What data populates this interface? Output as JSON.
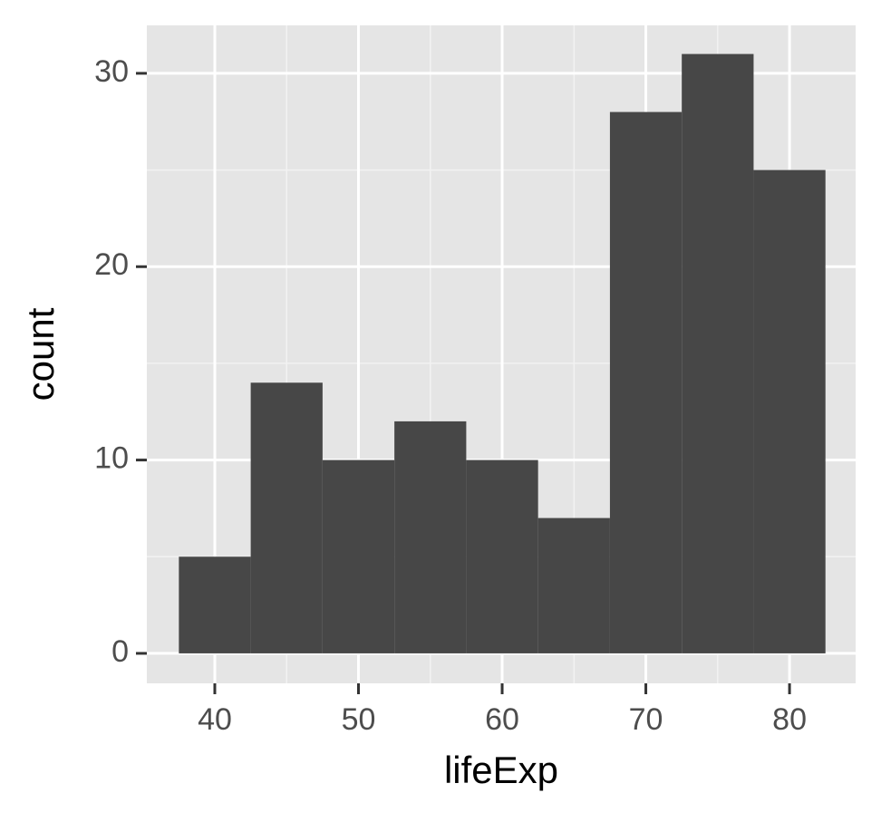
{
  "chart_data": {
    "type": "histogram",
    "x_label": "lifeExp",
    "y_label": "count",
    "bins": [
      37.5,
      42.5,
      47.5,
      52.5,
      57.5,
      62.5,
      67.5,
      72.5,
      77.5,
      82.5
    ],
    "values": [
      5,
      14,
      10,
      12,
      10,
      7,
      28,
      31,
      25
    ],
    "color": "#474747",
    "xlim": [
      35.27,
      84.6
    ],
    "ylim": [
      -1.55,
      32.48
    ],
    "xticks": [
      40,
      50,
      60,
      70,
      80
    ],
    "yticks": [
      0,
      10,
      20,
      30
    ],
    "grid": true
  }
}
